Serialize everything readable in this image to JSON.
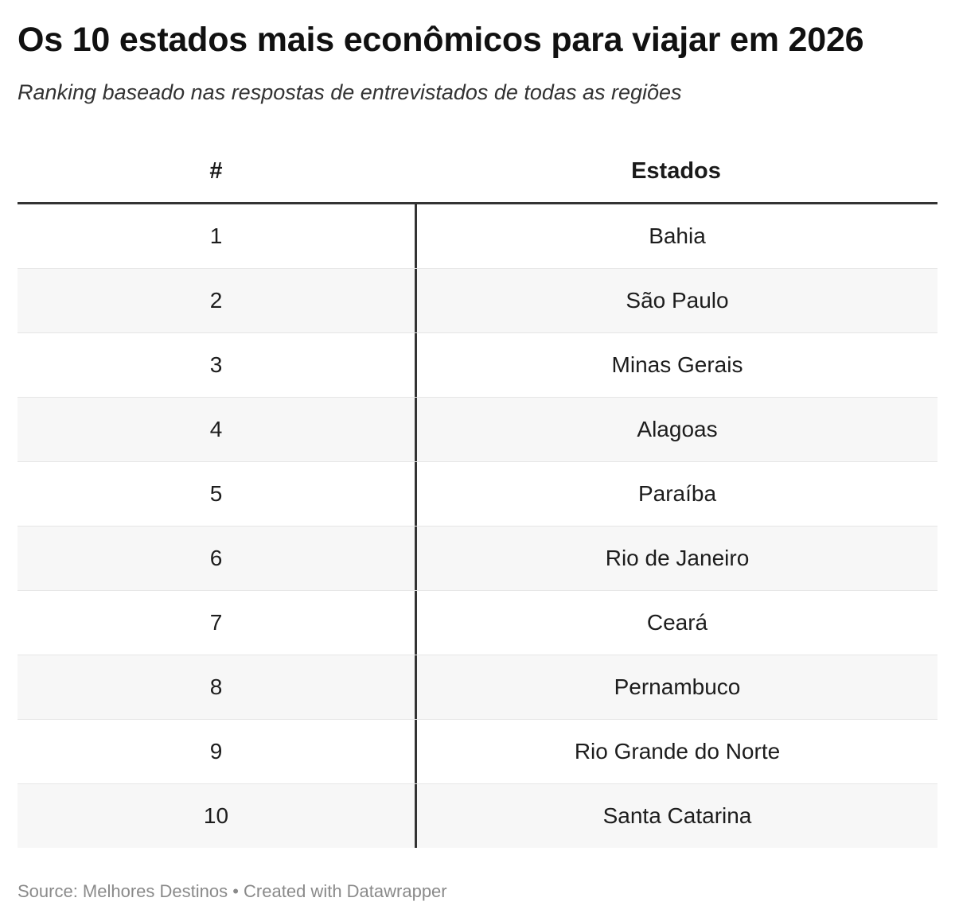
{
  "chart_data": {
    "type": "table",
    "title": "Os 10 estados mais econômicos para viajar em 2026",
    "subtitle": "Ranking baseado nas respostas de entrevistados de todas as regiões",
    "columns": [
      "#",
      "Estados"
    ],
    "rows": [
      {
        "rank": "1",
        "state": "Bahia"
      },
      {
        "rank": "2",
        "state": "São Paulo"
      },
      {
        "rank": "3",
        "state": "Minas Gerais"
      },
      {
        "rank": "4",
        "state": "Alagoas"
      },
      {
        "rank": "5",
        "state": "Paraíba"
      },
      {
        "rank": "6",
        "state": "Rio de Janeiro"
      },
      {
        "rank": "7",
        "state": "Ceará"
      },
      {
        "rank": "8",
        "state": "Pernambuco"
      },
      {
        "rank": "9",
        "state": "Rio Grande do Norte"
      },
      {
        "rank": "10",
        "state": "Santa Catarina"
      }
    ],
    "footer": "Source: Melhores Destinos • Created with Datawrapper"
  }
}
